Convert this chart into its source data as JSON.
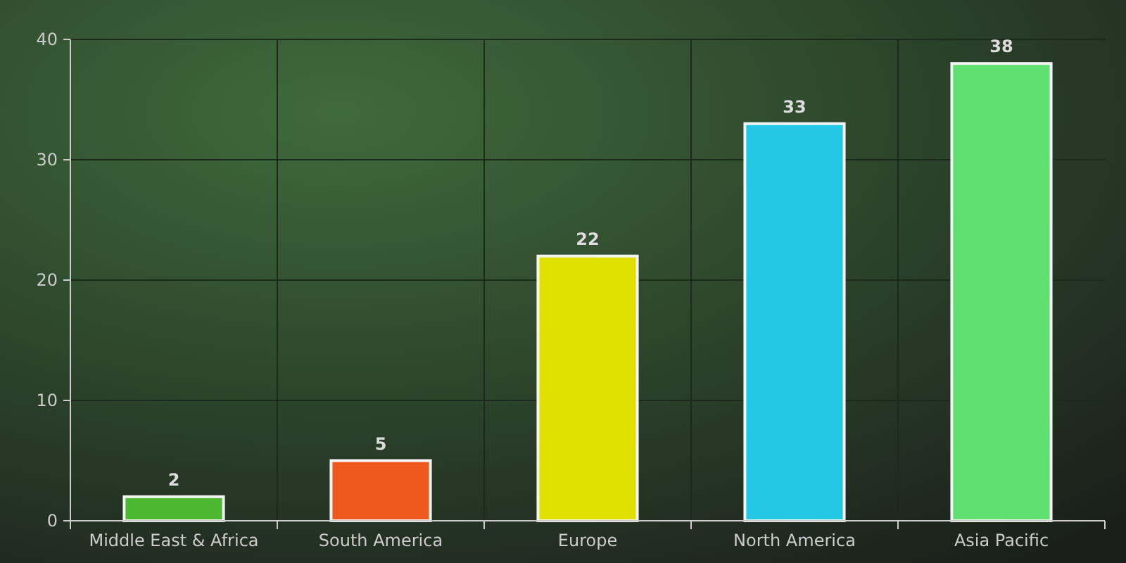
{
  "chart_data": {
    "type": "bar",
    "categories": [
      "Middle East & Africa",
      "South America",
      "Europe",
      "North America",
      "Asia Pacific"
    ],
    "values": [
      2,
      5,
      22,
      33,
      38
    ],
    "colors": [
      "#4cb832",
      "#ee5a1e",
      "#e0e000",
      "#22c8e6",
      "#60e070"
    ],
    "ylim": [
      0,
      40
    ],
    "yticks": [
      0,
      10,
      20,
      30,
      40
    ],
    "grid": true,
    "data_labels": true
  }
}
